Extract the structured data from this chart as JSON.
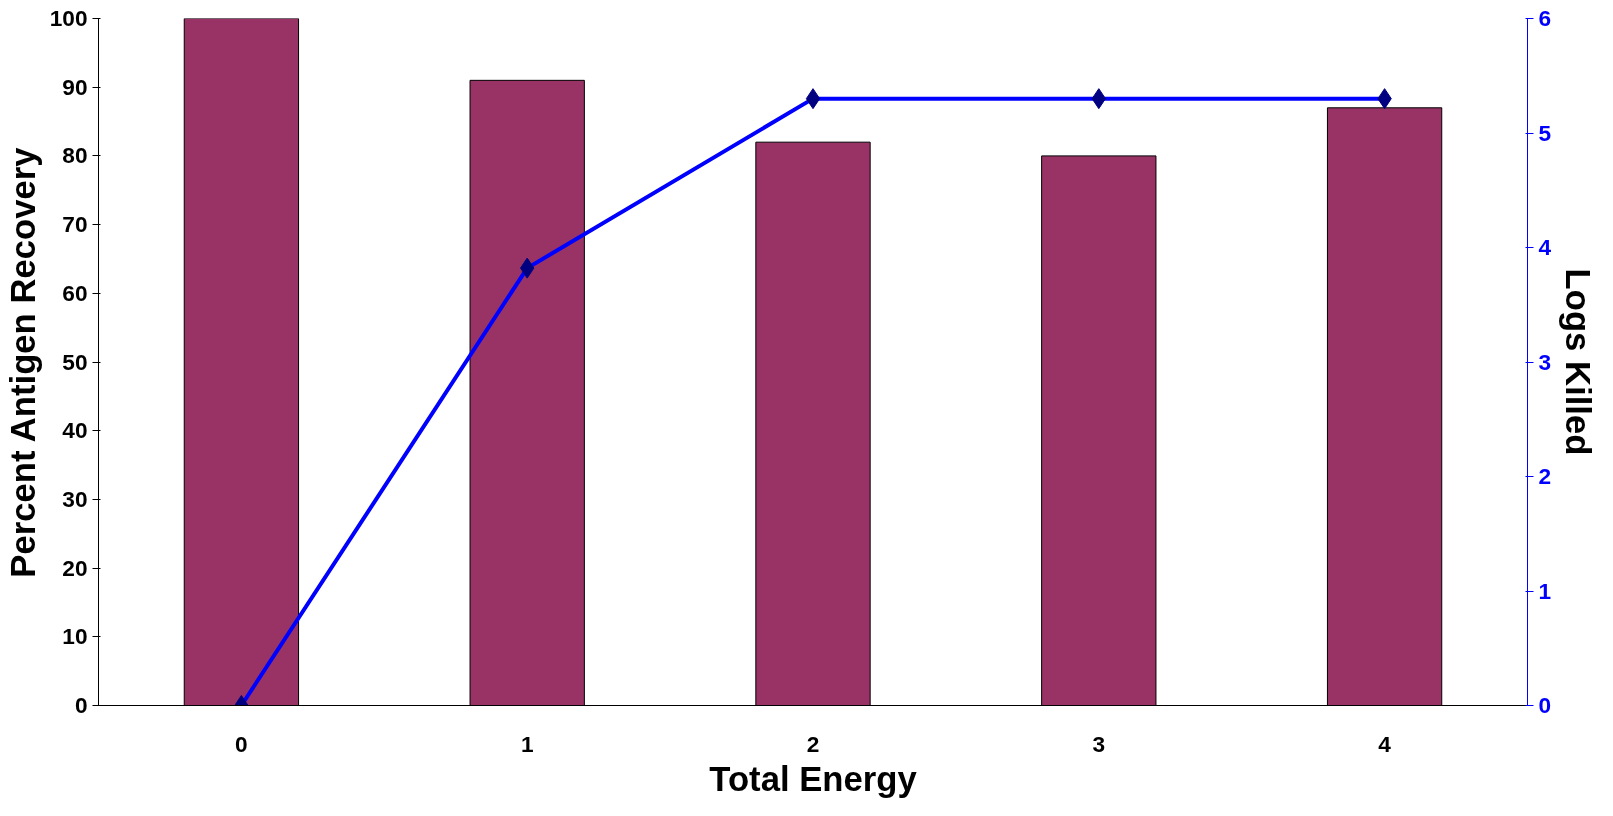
{
  "chart_data": {
    "type": "bar",
    "xlabel": "Total Energy",
    "ylabel": "Percent Antigen Recovery",
    "y2label": "Logs Killed",
    "categories": [
      "0",
      "1",
      "2",
      "3",
      "4"
    ],
    "series": [
      {
        "color": "#993366",
        "values": [
          100,
          91,
          82,
          80,
          87
        ]
      },
      {
        "type": "line",
        "axis": "y2",
        "color": "#0000ff",
        "marker": "diamond",
        "values": [
          0,
          3.82,
          5.3,
          5.3,
          5.3
        ]
      }
    ],
    "ylim": [
      0,
      100
    ],
    "yticks": [
      0,
      10,
      20,
      30,
      40,
      50,
      60,
      70,
      80,
      90,
      100
    ],
    "y2lim": [
      0,
      6
    ],
    "y2ticks": [
      0,
      1,
      2,
      3,
      4,
      5,
      6
    ],
    "grid": false
  }
}
